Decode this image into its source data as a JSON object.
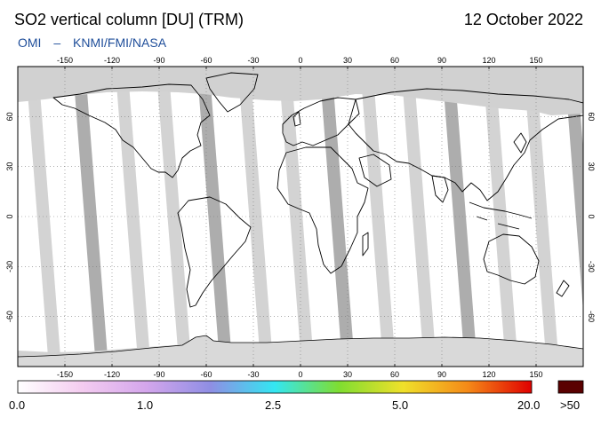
{
  "header": {
    "title": "SO2 vertical column [DU] (TRM)",
    "date": "12 October 2022",
    "instrument": "OMI",
    "separator": "–",
    "credit": "KNMI/FMI/NASA"
  },
  "map": {
    "projection": "equirectangular",
    "lon_range": [
      -180,
      180
    ],
    "lat_range": [
      -90,
      90
    ],
    "lon_ticks": [
      "-150",
      "-120",
      "-90",
      "-60",
      "-30",
      "0",
      "30",
      "60",
      "90",
      "120",
      "150"
    ],
    "lat_ticks": [
      "60",
      "30",
      "0",
      "-30",
      "-60"
    ],
    "colors": {
      "no_data": "#d1d1d1",
      "no_data_dark": "#a9a9a9",
      "background": "#ffffff",
      "coastline": "#000000",
      "grid": "#7a7a7a"
    }
  },
  "colorbar": {
    "labels": [
      "0.0",
      "1.0",
      "2.5",
      "5.0",
      "20.0"
    ],
    "overflow_label": ">50",
    "overflow_color": "#5a0000",
    "stops": [
      "#ffffff",
      "#f4ccf0",
      "#d4a6ec",
      "#8f8ee4",
      "#33e6f2",
      "#7fdd31",
      "#f0e02a",
      "#f58a18",
      "#e00000"
    ]
  }
}
